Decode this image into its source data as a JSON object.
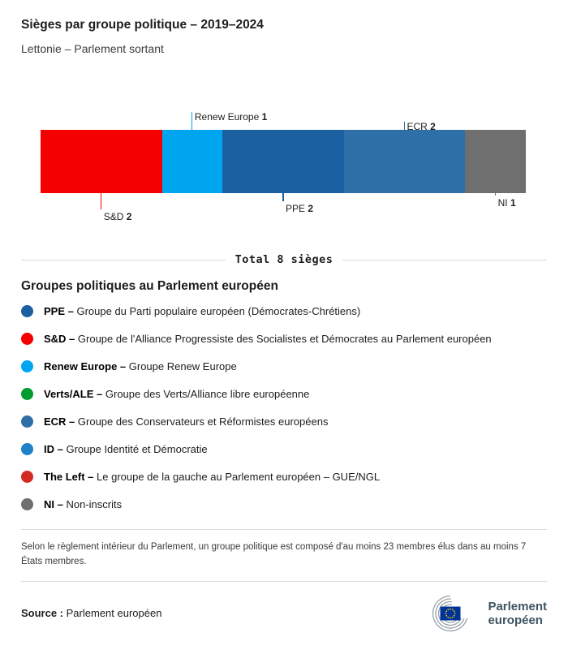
{
  "header": {
    "title": "Sièges par groupe politique – 2019–2024",
    "subtitle": "Lettonie – Parlement sortant"
  },
  "chart_data": {
    "type": "bar",
    "title": "Sièges par groupe politique – 2019–2024",
    "subtitle": "Lettonie – Parlement sortant",
    "total": 8,
    "total_label": "Total 8 sièges",
    "segments": [
      {
        "name": "S&D",
        "seats": 2,
        "color": "#f50000"
      },
      {
        "name": "Renew Europe",
        "seats": 1,
        "color": "#00a5f0"
      },
      {
        "name": "PPE",
        "seats": 2,
        "color": "#1a5fa0"
      },
      {
        "name": "ECR",
        "seats": 2,
        "color": "#2f6fa8"
      },
      {
        "name": "NI",
        "seats": 1,
        "color": "#6f6f6f"
      }
    ]
  },
  "legend": {
    "heading": "Groupes politiques au Parlement européen",
    "items": [
      {
        "label": "PPE",
        "desc": "Groupe du Parti populaire européen (Démocrates-Chrétiens)",
        "color": "#1a5fa0"
      },
      {
        "label": "S&D",
        "desc": "Groupe de l'Alliance Progressiste des Socialistes et Démocrates au Parlement européen",
        "color": "#f50000"
      },
      {
        "label": "Renew Europe",
        "desc": "Groupe Renew Europe",
        "color": "#00a5f0"
      },
      {
        "label": "Verts/ALE",
        "desc": "Groupe des Verts/Alliance libre européenne",
        "color": "#009b30"
      },
      {
        "label": "ECR",
        "desc": "Groupe des Conservateurs et Réformistes européens",
        "color": "#2f6fa8"
      },
      {
        "label": "ID",
        "desc": "Groupe Identité et Démocratie",
        "color": "#2080c8"
      },
      {
        "label": "The Left",
        "desc": "Le groupe de la gauche au Parlement européen – GUE/NGL",
        "color": "#d32b22"
      },
      {
        "label": "NI",
        "desc": "Non-inscrits",
        "color": "#6f6f6f"
      }
    ]
  },
  "footnote": "Selon le règlement intérieur du Parlement, un groupe politique est composé d'au moins 23 membres élus dans au moins 7 États membres.",
  "source": {
    "label": "Source :",
    "value": "Parlement européen"
  },
  "logo": {
    "line1": "Parlement",
    "line2": "européen"
  }
}
